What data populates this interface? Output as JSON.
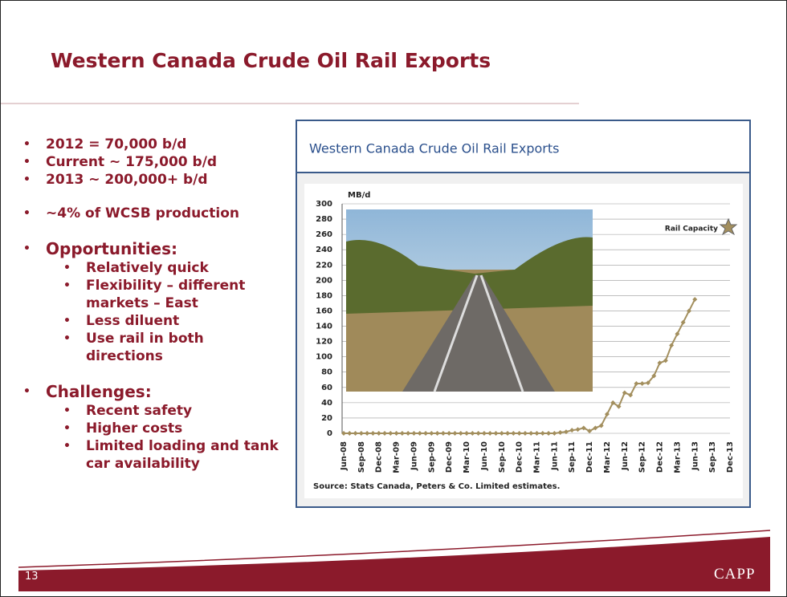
{
  "header": {
    "title": "Western Canada Crude Oil Rail Exports"
  },
  "bullets": [
    {
      "text": "2012 = 70,000 b/d",
      "level": 1
    },
    {
      "text": "Current ~ 175,000 b/d",
      "level": 1
    },
    {
      "text": "2013 ~ 200,000+ b/d",
      "level": 1
    },
    {
      "text": "~4% of WCSB production",
      "level": 1
    },
    {
      "text": "Opportunities:",
      "level": 1
    },
    {
      "text": "Relatively quick",
      "level": 2
    },
    {
      "text": "Flexibility – different markets – East",
      "level": 2
    },
    {
      "text": "Less diluent",
      "level": 2
    },
    {
      "text": "Use rail in both directions",
      "level": 2
    },
    {
      "text": "Challenges:",
      "level": 1
    },
    {
      "text": "Recent safety",
      "level": 2
    },
    {
      "text": "Higher costs",
      "level": 2
    },
    {
      "text": "Limited loading and tank car availability",
      "level": 2
    }
  ],
  "chart_data": {
    "type": "line",
    "title": "Western Canada Crude Oil Rail Exports",
    "y_axis_label": "MB/d",
    "source": "Source: Stats Canada, Peters & Co. Limited estimates.",
    "annotation": "Rail Capacity",
    "color": "#a38f5e",
    "grid": true,
    "ylim": [
      0,
      300
    ],
    "yticks": [
      0,
      20,
      40,
      60,
      80,
      100,
      120,
      140,
      160,
      180,
      200,
      220,
      240,
      260,
      280,
      300
    ],
    "categories": [
      "Jun-08",
      null,
      null,
      "Sep-08",
      null,
      null,
      "Dec-08",
      null,
      null,
      "Mar-09",
      null,
      null,
      "Jun-09",
      null,
      null,
      "Sep-09",
      null,
      null,
      "Dec-09",
      null,
      null,
      "Mar-10",
      null,
      null,
      "Jun-10",
      null,
      null,
      "Sep-10",
      null,
      null,
      "Dec-10",
      null,
      null,
      "Mar-11",
      null,
      null,
      "Jun-11",
      null,
      null,
      "Sep-11",
      null,
      null,
      "Dec-11",
      null,
      null,
      "Mar-12",
      null,
      null,
      "Jun-12",
      null,
      null,
      "Sep-12",
      null,
      null,
      "Dec-12",
      null,
      null,
      "Mar-13",
      null,
      null,
      "Jun-13",
      null,
      null,
      "Sep-13",
      null,
      null,
      "Dec-13"
    ],
    "values": [
      0,
      0,
      0,
      0,
      0,
      0,
      0,
      0,
      0,
      0,
      0,
      0,
      0,
      0,
      0,
      0,
      0,
      0,
      0,
      0,
      0,
      0,
      0,
      0,
      0,
      0,
      0,
      0,
      0,
      0,
      0,
      0,
      0,
      0,
      0,
      0,
      0,
      1,
      2,
      4,
      5,
      7,
      3,
      7,
      10,
      25,
      40,
      35,
      53,
      50,
      65,
      65,
      66,
      75,
      92,
      95,
      115,
      130,
      145,
      160,
      175,
      null,
      null,
      null,
      null,
      null,
      null
    ]
  },
  "footer": {
    "page": "13",
    "logo": "CAPP"
  }
}
